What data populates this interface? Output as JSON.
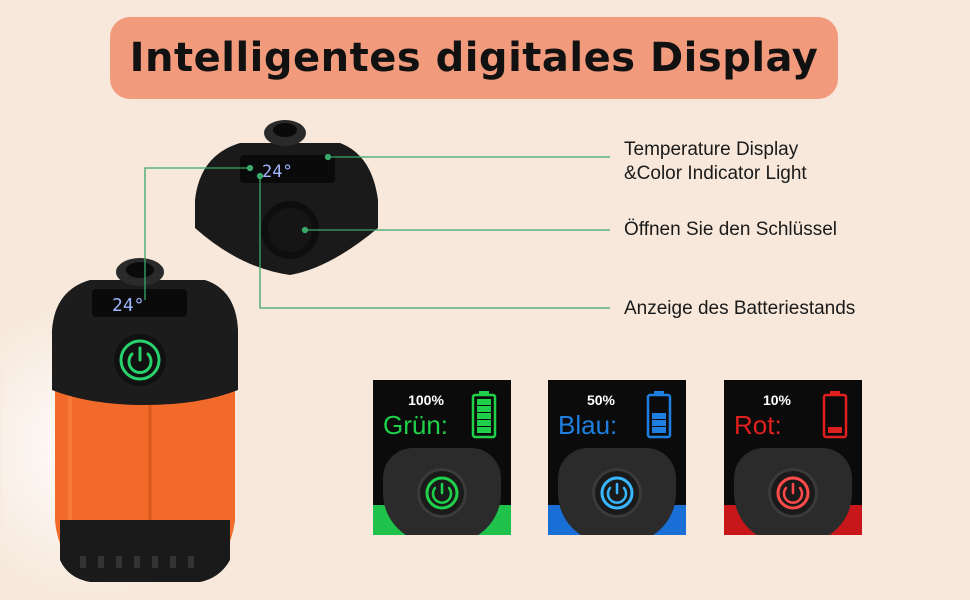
{
  "title": "Intelligentes digitales Display",
  "callouts": {
    "temperature_line1": "Temperature Display",
    "temperature_line2": "&Color Indicator Light",
    "key": "Öffnen Sie den Schlüssel",
    "battery": "Anzeige des Batteriestands"
  },
  "device": {
    "display_reading": "24°",
    "small_display_reading": "24°"
  },
  "cards": [
    {
      "percent": "100%",
      "label": "Grün:",
      "color": "#1fd14a",
      "bars_lit": 5
    },
    {
      "percent": "50%",
      "label": "Blau:",
      "color": "#1e7fe0",
      "bars_lit": 3
    },
    {
      "percent": "10%",
      "label": "Rot:",
      "color": "#e0201e",
      "bars_lit": 1
    }
  ],
  "colors": {
    "background": "#f7e8db",
    "title_pill": "#f29a7c",
    "device_orange": "#f26a2a",
    "callout_line": "#3aa86b"
  }
}
